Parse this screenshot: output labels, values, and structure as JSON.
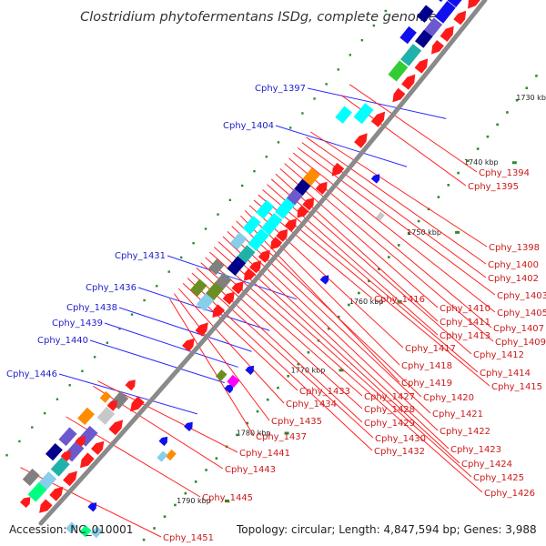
{
  "title": "Clostridium phytofermentans ISDg, complete genome",
  "accession": "Accession: NC_010001",
  "topology": "Topology: circular; Length: 4,847,594 bp; Genes: 3,988",
  "colors": {
    "backbone": "#8a8a8a",
    "label_left": "#1f1fcc",
    "label_right": "#cc1a1a",
    "line_left": "#2b2bff",
    "line_right": "#ff2222",
    "tick": "#2e8b2e",
    "red": "#ff1a1a",
    "blue": "#1010ee",
    "cyan": "#00ffff",
    "teal": "#20b2aa",
    "navy": "#00008b",
    "slate": "#6a5acd",
    "olive": "#6b8e23",
    "green": "#32cd32",
    "orange": "#ff8c00",
    "magenta": "#ff00ff",
    "gray": "#808080",
    "lightgray": "#c8c8c8",
    "darkgray": "#555555",
    "skyblue": "#87ceeb",
    "spring": "#00ff7f"
  },
  "kbp_marks": [
    {
      "label": "1730 kbp"
    },
    {
      "label": "1740 kbp"
    },
    {
      "label": "1750 kbp"
    },
    {
      "label": "1760 kbp"
    },
    {
      "label": "1770 kbp"
    },
    {
      "label": "1780 kbp"
    },
    {
      "label": "1790 kbp"
    }
  ],
  "left_labels": [
    {
      "text": "Cphy_1397"
    },
    {
      "text": "Cphy_1404"
    },
    {
      "text": "Cphy_1431"
    },
    {
      "text": "Cphy_1436"
    },
    {
      "text": "Cphy_1438"
    },
    {
      "text": "Cphy_1439"
    },
    {
      "text": "Cphy_1440"
    },
    {
      "text": "Cphy_1446"
    }
  ],
  "right_labels": [
    {
      "text": "Cphy_1394"
    },
    {
      "text": "Cphy_1395"
    },
    {
      "text": "Cphy_1398"
    },
    {
      "text": "Cphy_1400"
    },
    {
      "text": "Cphy_1402"
    },
    {
      "text": "Cphy_1403"
    },
    {
      "text": "Cphy_1405"
    },
    {
      "text": "Cphy_1407"
    },
    {
      "text": "Cphy_1409"
    },
    {
      "text": "Cphy_1410"
    },
    {
      "text": "Cphy_1411"
    },
    {
      "text": "Cphy_1412"
    },
    {
      "text": "Cphy_1413"
    },
    {
      "text": "Cphy_1414"
    },
    {
      "text": "Cphy_1415"
    },
    {
      "text": "Cphy_1416"
    },
    {
      "text": "Cphy_1417"
    },
    {
      "text": "Cphy_1418"
    },
    {
      "text": "Cphy_1419"
    },
    {
      "text": "Cphy_1420"
    },
    {
      "text": "Cphy_1421"
    },
    {
      "text": "Cphy_1422"
    },
    {
      "text": "Cphy_1423"
    },
    {
      "text": "Cphy_1424"
    },
    {
      "text": "Cphy_1425"
    },
    {
      "text": "Cphy_1426"
    },
    {
      "text": "Cphy_1427"
    },
    {
      "text": "Cphy_1428"
    },
    {
      "text": "Cphy_1429"
    },
    {
      "text": "Cphy_1430"
    },
    {
      "text": "Cphy_1432"
    },
    {
      "text": "Cphy_1433"
    },
    {
      "text": "Cphy_1434"
    },
    {
      "text": "Cphy_1435"
    },
    {
      "text": "Cphy_1437"
    },
    {
      "text": "Cphy_1441"
    },
    {
      "text": "Cphy_1443"
    },
    {
      "text": "Cphy_1445"
    },
    {
      "text": "Cphy_1451"
    }
  ]
}
